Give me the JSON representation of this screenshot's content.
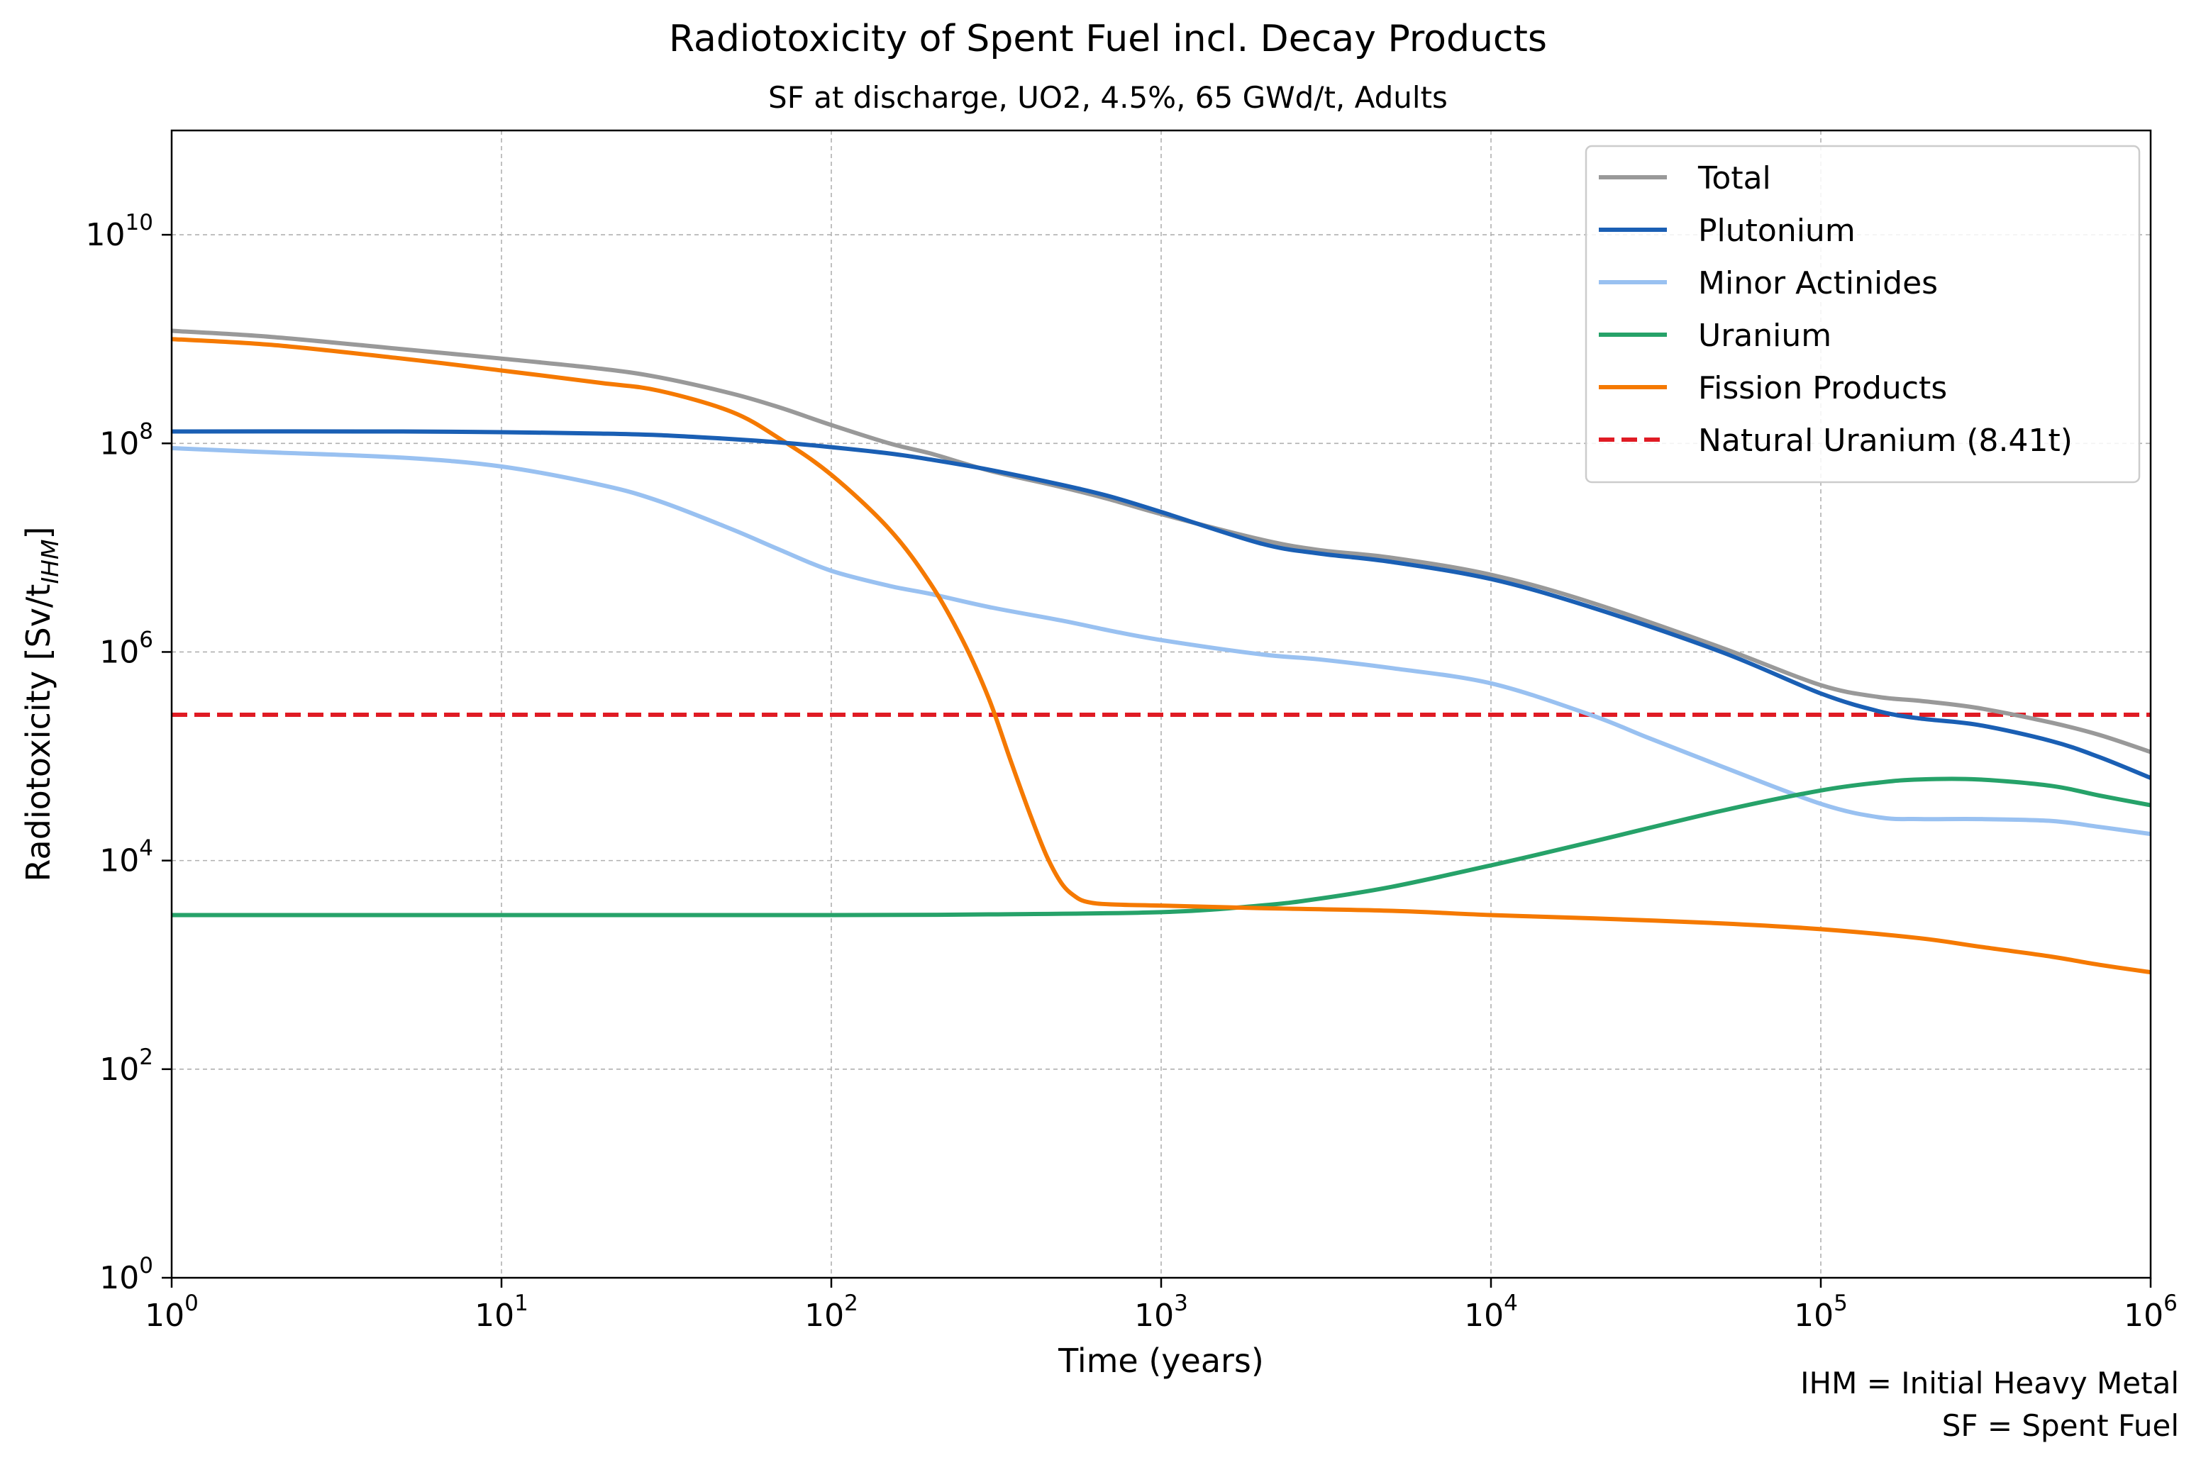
{
  "chart_data": {
    "type": "line",
    "title": "Radiotoxicity of Spent Fuel incl. Decay Products",
    "subtitle": "SF at discharge, UO2, 4.5%, 65 GWd/t, Adults",
    "xlabel": "Time (years)",
    "ylabel_main": "Radiotoxicity [Sv/t",
    "ylabel_sub": "IHM",
    "ylabel_close": "]",
    "x_scale": "log",
    "y_scale": "log",
    "xlim": [
      1,
      1000000
    ],
    "ylim": [
      1,
      100000000000
    ],
    "grid": true,
    "legend_position": "top-right",
    "x_ticks": [
      {
        "value": 1,
        "base": "10",
        "exp": "0"
      },
      {
        "value": 10,
        "base": "10",
        "exp": "1"
      },
      {
        "value": 100,
        "base": "10",
        "exp": "2"
      },
      {
        "value": 1000,
        "base": "10",
        "exp": "3"
      },
      {
        "value": 10000,
        "base": "10",
        "exp": "4"
      },
      {
        "value": 100000,
        "base": "10",
        "exp": "5"
      },
      {
        "value": 1000000,
        "base": "10",
        "exp": "6"
      }
    ],
    "y_ticks": [
      {
        "value": 1,
        "base": "10",
        "exp": "0"
      },
      {
        "value": 100,
        "base": "10",
        "exp": "2"
      },
      {
        "value": 10000,
        "base": "10",
        "exp": "4"
      },
      {
        "value": 1000000,
        "base": "10",
        "exp": "6"
      },
      {
        "value": 100000000,
        "base": "10",
        "exp": "8"
      },
      {
        "value": 10000000000,
        "base": "10",
        "exp": "10"
      }
    ],
    "series": [
      {
        "name": "Total",
        "color": "#999999",
        "dash": false,
        "x": [
          1,
          2,
          5,
          10,
          20,
          30,
          50,
          70,
          100,
          150,
          200,
          300,
          500,
          700,
          1000,
          2000,
          3000,
          5000,
          10000,
          20000,
          50000,
          100000,
          150000,
          200000,
          300000,
          500000,
          700000,
          1000000
        ],
        "y": [
          1200000000,
          1050000000,
          800000000,
          650000000,
          520000000,
          430000000,
          300000000,
          220000000,
          150000000,
          100000000,
          80000000,
          55000000,
          38000000,
          29000000,
          21000000,
          12000000,
          9500000,
          8000000,
          5500000,
          3000000,
          1100000,
          480000,
          370000,
          340000,
          290000,
          210000,
          160000,
          110000
        ]
      },
      {
        "name": "Plutonium",
        "color": "#1a5fb4",
        "dash": false,
        "x": [
          1,
          5,
          10,
          20,
          30,
          50,
          70,
          100,
          150,
          200,
          300,
          500,
          700,
          1000,
          2000,
          3000,
          5000,
          10000,
          20000,
          50000,
          100000,
          150000,
          200000,
          300000,
          500000,
          700000,
          1000000
        ],
        "y": [
          130000000,
          130000000,
          128000000,
          124000000,
          120000000,
          110000000,
          102000000,
          92000000,
          80000000,
          70000000,
          56000000,
          40000000,
          31000000,
          22000000,
          11000000,
          8800000,
          7300000,
          5000000,
          2700000,
          1000000,
          400000,
          270000,
          230000,
          200000,
          140000,
          98000,
          62000
        ]
      },
      {
        "name": "Minor Actinides",
        "color": "#99c1f1",
        "dash": false,
        "x": [
          1,
          2,
          5,
          10,
          20,
          30,
          50,
          70,
          100,
          150,
          200,
          300,
          500,
          700,
          1000,
          2000,
          3000,
          5000,
          10000,
          20000,
          30000,
          50000,
          100000,
          150000,
          200000,
          300000,
          500000,
          700000,
          1000000
        ],
        "y": [
          90000000,
          82000000,
          73000000,
          60000000,
          40000000,
          28000000,
          15000000,
          9500000,
          6000000,
          4300000,
          3600000,
          2700000,
          2000000,
          1600000,
          1300000,
          950000,
          850000,
          700000,
          500000,
          250000,
          150000,
          80000,
          35000,
          26000,
          25000,
          25000,
          24000,
          21000,
          18000
        ]
      },
      {
        "name": "Uranium",
        "color": "#26a269",
        "dash": false,
        "x": [
          1,
          10,
          100,
          300,
          1000,
          2000,
          3000,
          5000,
          10000,
          20000,
          50000,
          100000,
          150000,
          200000,
          300000,
          500000,
          700000,
          1000000
        ],
        "y": [
          3000,
          3000,
          3000,
          3050,
          3200,
          3700,
          4300,
          5600,
          9000,
          15000,
          30000,
          47000,
          56000,
          60000,
          60000,
          52000,
          42000,
          34000
        ]
      },
      {
        "name": "Fission Products",
        "color": "#f57900",
        "dash": false,
        "x": [
          1,
          2,
          5,
          10,
          20,
          30,
          50,
          70,
          100,
          150,
          200,
          250,
          300,
          350,
          400,
          450,
          500,
          550,
          600,
          700,
          1000,
          2000,
          5000,
          10000,
          20000,
          50000,
          100000,
          200000,
          300000,
          500000,
          700000,
          1000000
        ],
        "y": [
          1000000000,
          880000000,
          650000000,
          500000000,
          380000000,
          320000000,
          200000000,
          110000000,
          50000000,
          15000000,
          4500000,
          1300000,
          360000,
          90000,
          28000,
          11000,
          6000,
          4500,
          4000,
          3800,
          3700,
          3500,
          3300,
          3000,
          2800,
          2500,
          2200,
          1800,
          1500,
          1200,
          1000,
          850
        ]
      },
      {
        "name": "Natural Uranium (8.41t)",
        "color": "#e01b24",
        "dash": true,
        "x": [
          1,
          1000000
        ],
        "y": [
          250000,
          250000
        ]
      }
    ],
    "footnote": [
      "IHM = Initial Heavy Metal",
      "SF = Spent Fuel"
    ]
  }
}
